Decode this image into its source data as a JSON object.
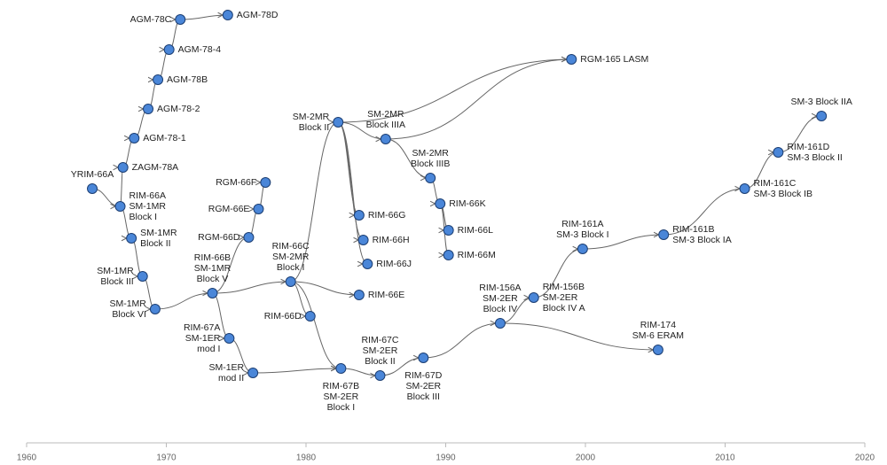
{
  "axis": {
    "xlim": [
      1960,
      2020
    ],
    "xticks": [
      1960,
      1970,
      1980,
      1990,
      2000,
      2010,
      2020
    ]
  },
  "nodes": [
    {
      "label": [
        "YRIM-66A"
      ],
      "year": 1964.7
    },
    {
      "label": [
        "RIM-66A",
        "SM-1MR",
        "Block I"
      ],
      "year": 1966.7
    },
    {
      "label": [
        "ZAGM-78A"
      ],
      "year": 1966.9
    },
    {
      "label": [
        "AGM-78-1"
      ],
      "year": 1967.7
    },
    {
      "label": [
        "AGM-78-2"
      ],
      "year": 1968.7
    },
    {
      "label": [
        "AGM-78B"
      ],
      "year": 1969.4
    },
    {
      "label": [
        "AGM-78-4"
      ],
      "year": 1970.2
    },
    {
      "label": [
        "AGM-78C"
      ],
      "year": 1971.0
    },
    {
      "label": [
        "AGM-78D"
      ],
      "year": 1974.4
    },
    {
      "label": [
        "SM-1MR",
        "Block II"
      ],
      "year": 1967.5
    },
    {
      "label": [
        "SM-1MR",
        "Block III"
      ],
      "year": 1968.3
    },
    {
      "label": [
        "SM-1MR",
        "Block VI"
      ],
      "year": 1969.2
    },
    {
      "label": [
        "RIM-66B",
        "SM-1MR",
        "Block V"
      ],
      "year": 1973.3
    },
    {
      "label": [
        "RGM-66D"
      ],
      "year": 1975.9
    },
    {
      "label": [
        "RGM-66E"
      ],
      "year": 1976.6
    },
    {
      "label": [
        "RGM-66F"
      ],
      "year": 1977.1
    },
    {
      "label": [
        "RIM-67A",
        "SM-1ER",
        "mod I"
      ],
      "year": 1974.5
    },
    {
      "label": [
        "SM-1ER",
        "mod II"
      ],
      "year": 1976.2
    },
    {
      "label": [
        "RIM-66C",
        "SM-2MR",
        "Block I"
      ],
      "year": 1978.9
    },
    {
      "label": [
        "RIM-66D"
      ],
      "year": 1980.3
    },
    {
      "label": [
        "SM-2MR",
        "Block II"
      ],
      "year": 1982.3
    },
    {
      "label": [
        "RIM-67B",
        "SM-2ER",
        "Block I"
      ],
      "year": 1982.5
    },
    {
      "label": [
        "RIM-66E"
      ],
      "year": 1983.8
    },
    {
      "label": [
        "RIM-66G"
      ],
      "year": 1983.8
    },
    {
      "label": [
        "RIM-66H"
      ],
      "year": 1984.1
    },
    {
      "label": [
        "RIM-66J"
      ],
      "year": 1984.4
    },
    {
      "label": [
        "SM-2MR",
        "Block IIIA"
      ],
      "year": 1985.7
    },
    {
      "label": [
        "SM-2MR",
        "Block IIIB"
      ],
      "year": 1988.9
    },
    {
      "label": [
        "RIM-66K"
      ],
      "year": 1989.6
    },
    {
      "label": [
        "RIM-66L"
      ],
      "year": 1990.2
    },
    {
      "label": [
        "RIM-66M"
      ],
      "year": 1990.2
    },
    {
      "label": [
        "RIM-67C",
        "SM-2ER",
        "Block II"
      ],
      "year": 1985.3
    },
    {
      "label": [
        "RIM-67D",
        "SM-2ER",
        "Block III"
      ],
      "year": 1988.4
    },
    {
      "label": [
        "RGM-165 LASM"
      ],
      "year": 1999.0
    },
    {
      "label": [
        "RIM-156A",
        "SM-2ER",
        "Block IV"
      ],
      "year": 1993.9
    },
    {
      "label": [
        "RIM-156B",
        "SM-2ER",
        "Block IV A"
      ],
      "year": 1996.3
    },
    {
      "label": [
        "RIM-174",
        "SM-6 ERAM"
      ],
      "year": 2005.2
    },
    {
      "label": [
        "RIM-161A",
        "SM-3 Block I"
      ],
      "year": 1999.8
    },
    {
      "label": [
        "RIM-161B",
        "SM-3 Block IA"
      ],
      "year": 2005.6
    },
    {
      "label": [
        "RIM-161C",
        "SM-3 Block IB"
      ],
      "year": 2011.4
    },
    {
      "label": [
        "RIM-161D",
        "SM-3 Block II"
      ],
      "year": 2013.8
    },
    {
      "label": [
        "SM-3 Block IIA"
      ],
      "year": 2016.9
    }
  ]
}
